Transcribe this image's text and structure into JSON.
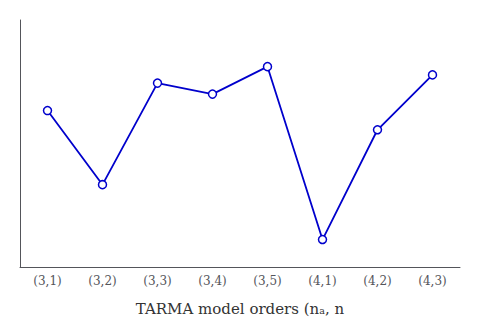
{
  "chart_data": {
    "type": "line",
    "categories": [
      "(3,1)",
      "(3,2)",
      "(3,3)",
      "(3,4)",
      "(3,5)",
      "(4,1)",
      "(4,2)",
      "(4,3)"
    ],
    "values": [
      0.62,
      0.35,
      0.72,
      0.68,
      0.78,
      0.15,
      0.55,
      0.75
    ],
    "color": "#0000cc",
    "marker": "circle",
    "xlabel": "TARMA model orders (nₐ, n",
    "ylim": [
      0.05,
      0.95
    ],
    "tick_labels": "x",
    "grid": false
  }
}
